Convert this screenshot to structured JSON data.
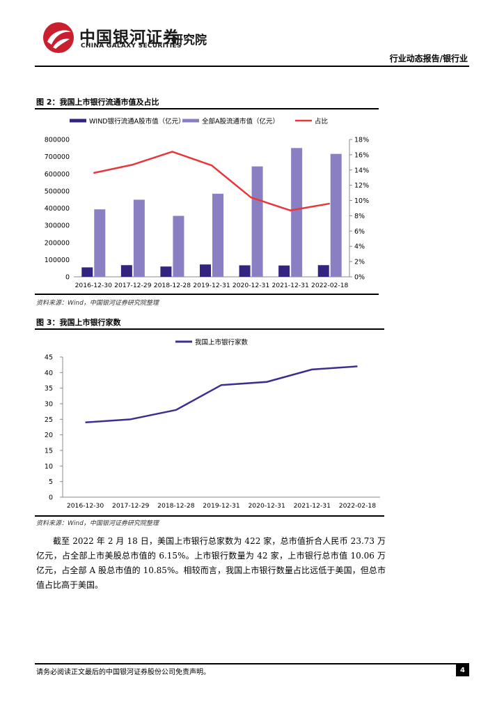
{
  "header": {
    "company_cn": "中国银河证券",
    "company_en": "CHINA GALAXY SECURITIES",
    "department": "研究院",
    "report_type": "行业动态报告/银行业"
  },
  "figure2": {
    "title": "图 2：我国上市银行流通市值及占比",
    "source": "资料来源：Wind，中国银河证券研究院整理"
  },
  "figure3": {
    "title": "图 3：我国上市银行家数",
    "source": "资料来源：Wind，中国银河证券研究院整理"
  },
  "paragraph": "截至 2022 年 2 月 18 日，美国上市银行总家数为 422 家，总市值折合人民币 23.73 万亿元，占全部上市美股总市值的 6.15%。上市银行数量为 42 家，上市银行总市值 10.06 万亿元，占全部 A 股总市值的 10.85%。相较而言，我国上市银行数量占比远低于美国，但总市值占比高于美国。",
  "footer": {
    "disclaimer": "请务必阅读正文最后的中国银河证券股份公司免责声明。",
    "page": "4"
  },
  "colors": {
    "dark_bar": "#34237f",
    "light_bar": "#8b7fc4",
    "ratio_line": "#e8363b",
    "count_line": "#3c2f8f",
    "logo_red": "#c8202e"
  },
  "chart_data": [
    {
      "type": "bar",
      "categories": [
        "2016-12-30",
        "2017-12-29",
        "2018-12-28",
        "2019-12-31",
        "2020-12-31",
        "2021-12-31",
        "2022-02-18"
      ],
      "series": [
        {
          "name": "WIND银行流通A股市值（亿元）",
          "type": "bar",
          "axis": "left",
          "values": [
            55000,
            68000,
            60000,
            72000,
            67000,
            66000,
            68000
          ]
        },
        {
          "name": "全部A股流通市值（亿元）",
          "type": "bar",
          "axis": "left",
          "values": [
            393000,
            449000,
            355000,
            484000,
            643000,
            750000,
            716000
          ]
        },
        {
          "name": "占比",
          "type": "line",
          "axis": "right",
          "values": [
            13.6,
            14.7,
            16.4,
            14.6,
            10.4,
            8.7,
            9.6
          ]
        }
      ],
      "ylim": [
        0,
        800000
      ],
      "yticks": [
        "0",
        "100000",
        "200000",
        "300000",
        "400000",
        "500000",
        "600000",
        "700000",
        "800000"
      ],
      "y2lim": [
        0,
        18
      ],
      "y2ticks": [
        "0%",
        "2%",
        "4%",
        "6%",
        "8%",
        "10%",
        "12%",
        "14%",
        "16%",
        "18%"
      ],
      "legend": "top"
    },
    {
      "type": "line",
      "categories": [
        "2016-12-30",
        "2017-12-29",
        "2018-12-28",
        "2019-12-31",
        "2020-12-31",
        "2021-12-31",
        "2022-02-18"
      ],
      "series": [
        {
          "name": "我国上市银行家数",
          "values": [
            24,
            25,
            28,
            36,
            37,
            41,
            42
          ]
        }
      ],
      "ylim": [
        0,
        45
      ],
      "yticks": [
        "0",
        "5",
        "10",
        "15",
        "20",
        "25",
        "30",
        "35",
        "40",
        "45"
      ],
      "legend": "top"
    }
  ]
}
